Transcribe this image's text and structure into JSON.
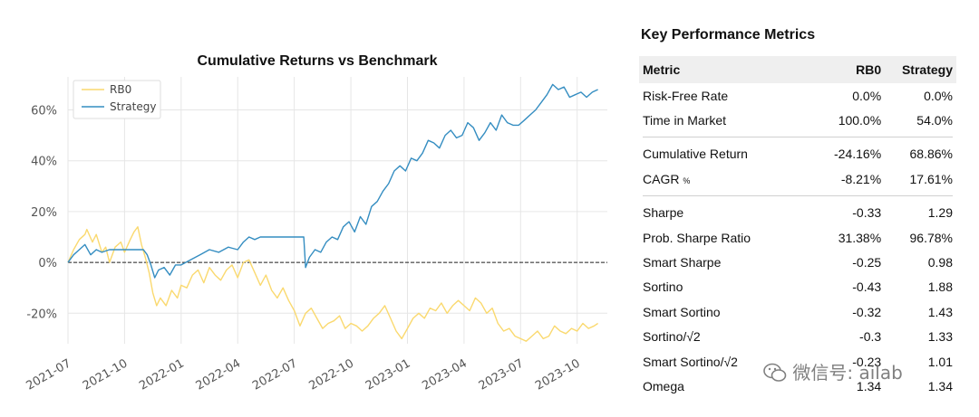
{
  "chart_data": {
    "type": "line",
    "title": "Cumulative Returns vs Benchmark",
    "xlabel": "",
    "ylabel": "",
    "ylim": [
      -32,
      73
    ],
    "yticks": [
      -20,
      0,
      20,
      40,
      60
    ],
    "ytick_labels": [
      "-20%",
      "0%",
      "20%",
      "40%",
      "60%"
    ],
    "xlim": [
      0,
      28.6
    ],
    "xticks": [
      0,
      3,
      6,
      9,
      12,
      15,
      18,
      21,
      24,
      27
    ],
    "xtick_labels": [
      "2021-07",
      "2021-10",
      "2022-01",
      "2022-04",
      "2022-07",
      "2022-10",
      "2023-01",
      "2023-04",
      "2023-07",
      "2023-10"
    ],
    "x_unit": "months since 2021-07",
    "grid": true,
    "zero_line": true,
    "legend": "top-left",
    "series": [
      {
        "name": "RB0",
        "color": "#fad96f",
        "x": [
          0.0,
          0.3,
          0.6,
          0.9,
          1.0,
          1.3,
          1.5,
          1.8,
          2.0,
          2.2,
          2.5,
          2.8,
          3.0,
          3.3,
          3.5,
          3.7,
          3.9,
          4.1,
          4.3,
          4.5,
          4.7,
          4.9,
          5.2,
          5.5,
          5.8,
          6.0,
          6.3,
          6.6,
          6.9,
          7.2,
          7.5,
          7.8,
          8.1,
          8.4,
          8.7,
          9.0,
          9.3,
          9.6,
          9.9,
          10.2,
          10.5,
          10.8,
          11.1,
          11.4,
          11.7,
          12.0,
          12.3,
          12.6,
          12.9,
          13.2,
          13.5,
          13.8,
          14.1,
          14.4,
          14.7,
          15.0,
          15.3,
          15.6,
          15.9,
          16.2,
          16.5,
          16.8,
          17.1,
          17.4,
          17.7,
          18.0,
          18.3,
          18.6,
          18.9,
          19.2,
          19.5,
          19.8,
          20.1,
          20.4,
          20.7,
          21.0,
          21.3,
          21.6,
          21.9,
          22.2,
          22.5,
          22.8,
          23.1,
          23.4,
          23.7,
          24.0,
          24.3,
          24.6,
          24.9,
          25.2,
          25.5,
          25.8,
          26.1,
          26.4,
          26.7,
          27.0,
          27.3,
          27.6,
          27.9,
          28.1
        ],
        "y": [
          0,
          5,
          9,
          11,
          13,
          8,
          11,
          4,
          6,
          0,
          6,
          8,
          4,
          9,
          12,
          14,
          7,
          2,
          -4,
          -12,
          -17,
          -14,
          -17,
          -11,
          -14,
          -9,
          -10,
          -5,
          -3,
          -8,
          -2,
          -5,
          -7,
          -3,
          -1,
          -6,
          0,
          1,
          -4,
          -9,
          -5,
          -11,
          -14,
          -10,
          -15,
          -19,
          -25,
          -20,
          -18,
          -22,
          -26,
          -24,
          -23,
          -21,
          -26,
          -24,
          -25,
          -27,
          -25,
          -22,
          -20,
          -17,
          -22,
          -27,
          -30,
          -26,
          -22,
          -20,
          -22,
          -18,
          -19,
          -16,
          -20,
          -17,
          -15,
          -17,
          -19,
          -14,
          -16,
          -20,
          -18,
          -24,
          -27,
          -26,
          -29,
          -30,
          -31,
          -29,
          -27,
          -30,
          -29,
          -25,
          -27,
          -28,
          -26,
          -27,
          -24,
          -26,
          -25,
          -24
        ]
      },
      {
        "name": "Strategy",
        "color": "#348dc1",
        "x": [
          0.0,
          0.3,
          0.6,
          0.9,
          1.2,
          1.5,
          1.8,
          2.2,
          2.6,
          3.0,
          3.4,
          3.8,
          4.0,
          4.2,
          4.4,
          4.6,
          4.8,
          5.1,
          5.4,
          5.7,
          6.0,
          6.5,
          7.0,
          7.5,
          8.0,
          8.5,
          9.0,
          9.3,
          9.6,
          9.9,
          10.2,
          10.5,
          11.0,
          11.6,
          12.2,
          12.5,
          12.6,
          12.8,
          13.1,
          13.4,
          13.7,
          14.0,
          14.3,
          14.6,
          14.9,
          15.2,
          15.5,
          15.8,
          16.1,
          16.4,
          16.7,
          17.0,
          17.3,
          17.6,
          17.9,
          18.2,
          18.5,
          18.8,
          19.1,
          19.4,
          19.7,
          20.0,
          20.3,
          20.6,
          20.9,
          21.2,
          21.5,
          21.8,
          22.1,
          22.4,
          22.7,
          23.0,
          23.3,
          23.6,
          23.9,
          24.2,
          24.5,
          24.8,
          25.1,
          25.4,
          25.7,
          26.0,
          26.3,
          26.6,
          26.9,
          27.2,
          27.5,
          27.8,
          28.1
        ],
        "y": [
          0,
          3,
          5,
          7,
          3,
          5,
          4,
          5,
          5,
          5,
          5,
          5,
          5,
          3,
          -1,
          -6,
          -3,
          -2,
          -5,
          -1,
          -1,
          1,
          3,
          5,
          4,
          6,
          5,
          8,
          10,
          9,
          10,
          10,
          10,
          10,
          10,
          10,
          -2,
          2,
          5,
          4,
          8,
          10,
          9,
          14,
          16,
          12,
          18,
          15,
          22,
          24,
          28,
          31,
          36,
          38,
          36,
          41,
          40,
          43,
          48,
          47,
          45,
          50,
          52,
          49,
          50,
          55,
          53,
          48,
          51,
          55,
          52,
          58,
          55,
          54,
          54,
          56,
          58,
          60,
          63,
          66,
          70,
          68,
          69,
          65,
          66,
          67,
          65,
          67,
          68
        ]
      }
    ]
  },
  "metrics": {
    "title": "Key Performance Metrics",
    "headers": [
      "Metric",
      "RB0",
      "Strategy"
    ],
    "risk_free_rate": {
      "label": "Risk-Free Rate",
      "rb0": "0.0%",
      "strategy": "0.0%"
    },
    "time_in_market": {
      "label": "Time in Market",
      "rb0": "100.0%",
      "strategy": "54.0%"
    },
    "cumulative_return": {
      "label": "Cumulative Return",
      "rb0": "-24.16%",
      "strategy": "68.86%"
    },
    "cagr": {
      "label": "CAGR",
      "label_suffix": "%",
      "rb0": "-8.21%",
      "strategy": "17.61%"
    },
    "sharpe": {
      "label": "Sharpe",
      "rb0": "-0.33",
      "strategy": "1.29"
    },
    "prob_sharpe_ratio": {
      "label": "Prob. Sharpe Ratio",
      "rb0": "31.38%",
      "strategy": "96.78%"
    },
    "smart_sharpe": {
      "label": "Smart Sharpe",
      "rb0": "-0.25",
      "strategy": "0.98"
    },
    "sortino": {
      "label": "Sortino",
      "rb0": "-0.43",
      "strategy": "1.88"
    },
    "smart_sortino": {
      "label": "Smart Sortino",
      "rb0": "-0.32",
      "strategy": "1.43"
    },
    "sortino_sqrt2": {
      "label": "Sortino/√2",
      "rb0": "-0.3",
      "strategy": "1.33"
    },
    "smart_sortino_sqrt2": {
      "label": "Smart Sortino/√2",
      "rb0": "-0.23",
      "strategy": "1.01"
    },
    "omega": {
      "label": "Omega",
      "rb0": "1.34",
      "strategy": "1.34"
    }
  },
  "watermark": {
    "icon": "wechat-icon",
    "text": "微信号: ailab"
  }
}
